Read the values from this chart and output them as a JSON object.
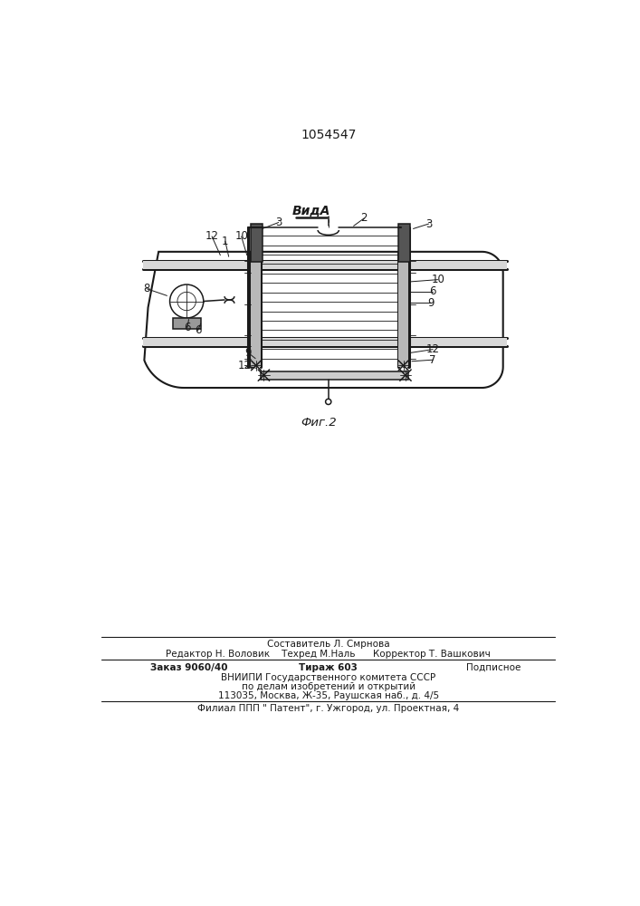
{
  "title": "1054547",
  "view_label": "ВидА",
  "fig_label": "Фиг.2",
  "line_color": "#1a1a1a",
  "footer": {
    "sestavitel": "Составитель Л. Смрнова",
    "redaktor": "Редактор Н. Воловик",
    "tehred": "Техред М.Наль",
    "korrektor": "Корректор Т. Вашкович",
    "zakaz": "Заказ 9060/40",
    "tirazh": "Тираж 603",
    "podpisnoe": "Подписное",
    "vniipи": "ВНИИПИ Государственного комитета СССР",
    "delam": "по делам изобретений и открытий",
    "address": "113035, Москва, Ж-35, Раушская наб., д. 4/5",
    "filial": "Филиал ППП \" Патент\", г. Ужгород, ул. Проектная, 4"
  }
}
